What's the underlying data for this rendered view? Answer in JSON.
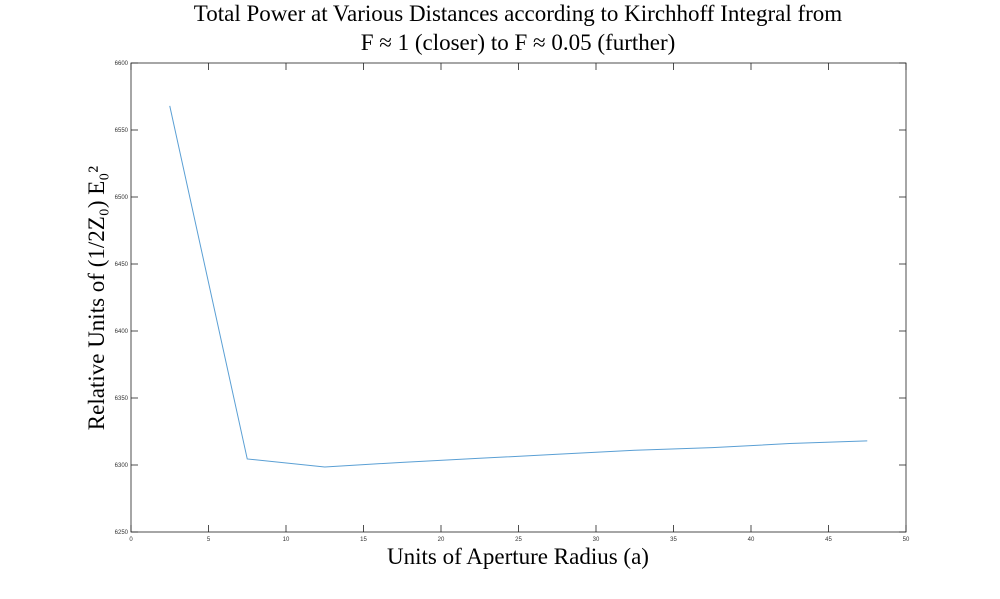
{
  "chart_data": {
    "type": "line",
    "title": [
      "Total Power at Various Distances according to Kirchhoff Integral from",
      "F ≈ 1 (closer) to F ≈ 0.05 (further)"
    ],
    "x_label": "Units of Aperture Radius (a)",
    "y_label": "Relative Units of (1/2Z₀) E₀²",
    "x": [
      2.5,
      7.5,
      12.5,
      17.5,
      22.5,
      27.5,
      32.5,
      37.5,
      42.5,
      47.5
    ],
    "series": [
      {
        "name": "Total Power",
        "color": "#5a9fd4",
        "values": [
          6568,
          6304.5,
          6298.5,
          6302,
          6305,
          6308,
          6311,
          6313,
          6316,
          6318
        ]
      }
    ],
    "xlim": [
      0,
      50
    ],
    "xticks": [
      0,
      5,
      10,
      15,
      20,
      25,
      30,
      35,
      40,
      45,
      50
    ],
    "ylim": [
      6250,
      6600
    ],
    "yticks": [
      6250,
      6300,
      6350,
      6400,
      6450,
      6500,
      6550,
      6600
    ],
    "grid": false
  }
}
